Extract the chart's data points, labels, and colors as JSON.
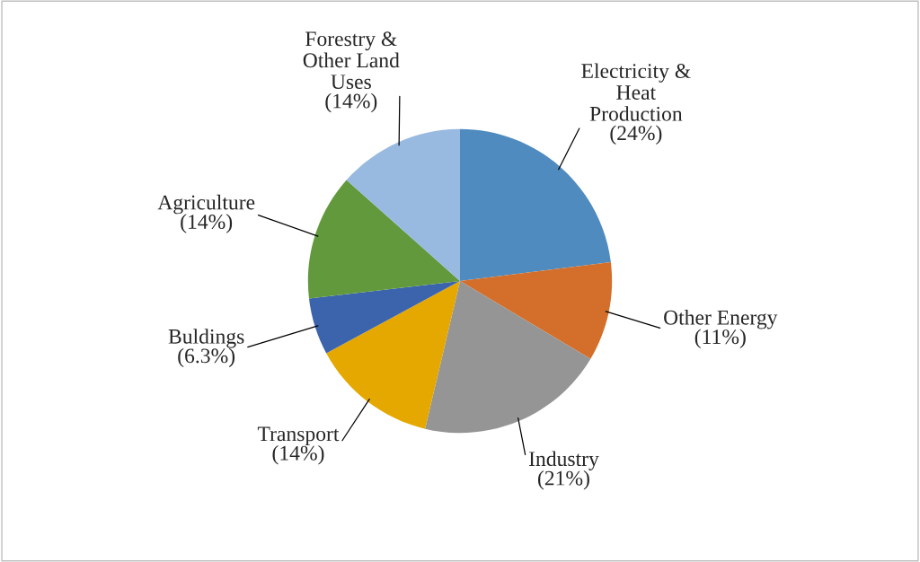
{
  "chart_data": {
    "type": "pie",
    "categories": [
      "Electricity & Heat Production",
      "Other Energy",
      "Industry",
      "Transport",
      "Buldings",
      "Agriculture",
      "Forestry & Other Land Uses"
    ],
    "values": [
      24,
      11,
      21,
      14,
      6.3,
      14,
      14
    ],
    "value_labels": [
      "(24%)",
      "(11%)",
      "(21%)",
      "(14%)",
      "(6.3%)",
      "(14%)",
      "(14%)"
    ],
    "colors": [
      "#4f8bbf",
      "#d36f2b",
      "#959595",
      "#e5a800",
      "#3b64ad",
      "#63993d",
      "#99bae0"
    ],
    "legend": false
  }
}
